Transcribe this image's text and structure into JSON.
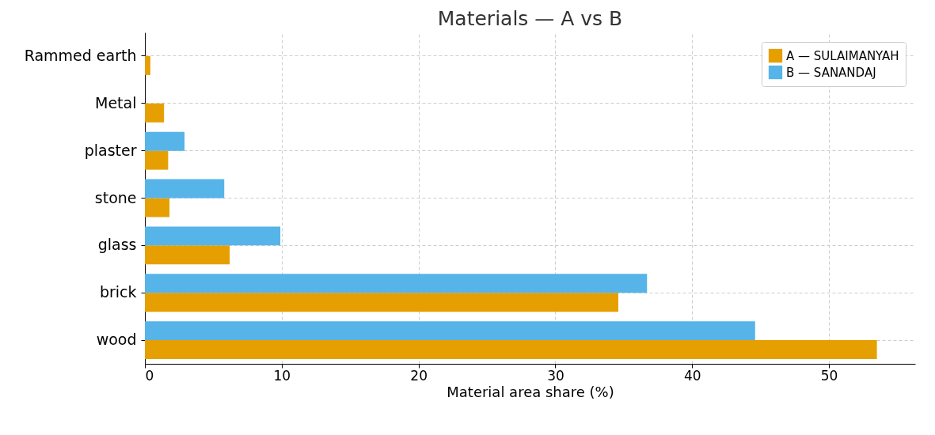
{
  "chart_data": {
    "type": "bar",
    "orientation": "horizontal",
    "title": "Materials — A vs B",
    "xlabel": "Material area share (%)",
    "categories": [
      "Rammed earth",
      "Metal",
      "plaster",
      "stone",
      "glass",
      "brick",
      "wood"
    ],
    "series": [
      {
        "name": "A — SULAIMANYAH",
        "color": "#e69f00",
        "values": [
          0.4,
          1.4,
          1.7,
          1.8,
          6.2,
          34.6,
          53.5
        ]
      },
      {
        "name": "B — SANANDAJ",
        "color": "#56b4e9",
        "values": [
          0,
          0,
          2.9,
          5.8,
          9.9,
          36.7,
          44.6
        ]
      }
    ],
    "xlim": [
      0,
      56.3
    ],
    "xticks": [
      0,
      10,
      20,
      30,
      40,
      50
    ],
    "grid": true,
    "legend": "top right"
  }
}
